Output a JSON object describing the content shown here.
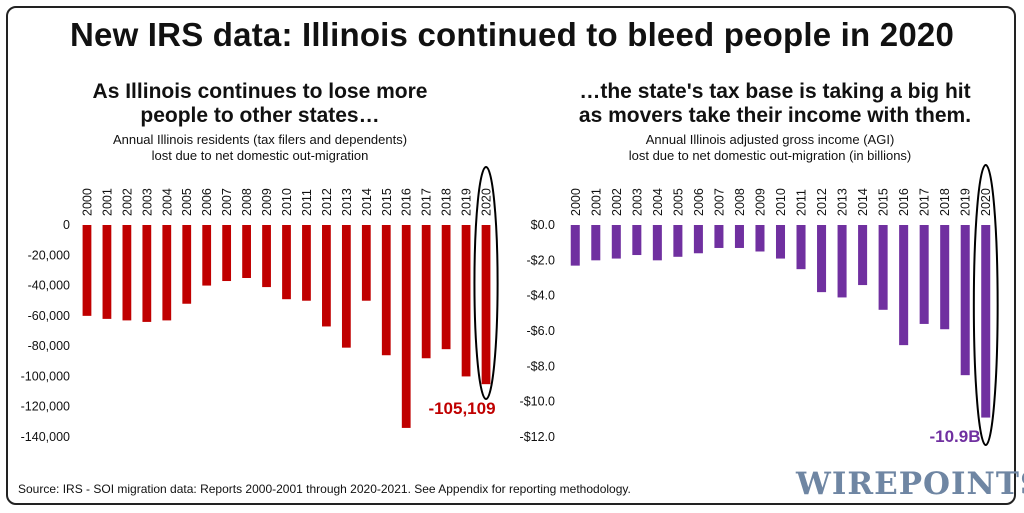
{
  "title": "New IRS data: Illinois continued to bleed people in 2020",
  "source": "Source: IRS - SOI migration data: Reports 2000-2001 through 2020-2021. See Appendix for reporting methodology.",
  "logo": "WIREPOINTS",
  "colors": {
    "left_bars": "#c00000",
    "right_bars": "#7030a0",
    "highlight_ellipse": "#000000"
  },
  "left_panel": {
    "subtitle_line1": "As Illinois continues to lose more",
    "subtitle_line2": "people to other states…",
    "caption_line1": "Annual Illinois residents (tax filers and dependents)",
    "caption_line2": "lost due to net domestic out-migration",
    "callout": "-105,109"
  },
  "right_panel": {
    "subtitle_line1": "…the state's tax base is taking a big hit",
    "subtitle_line2": "as movers take their income with them.",
    "caption_line1": "Annual Illinois adjusted gross income (AGI)",
    "caption_line2": "lost due to net domestic out-migration (in billions)",
    "callout": "-10.9B"
  },
  "chart_data": [
    {
      "type": "bar",
      "categories": [
        "2000",
        "2001",
        "2002",
        "2003",
        "2004",
        "2005",
        "2006",
        "2007",
        "2008",
        "2009",
        "2010",
        "2011",
        "2012",
        "2013",
        "2014",
        "2015",
        "2016",
        "2017",
        "2018",
        "2019",
        "2020"
      ],
      "values": [
        -60000,
        -62000,
        -63000,
        -64000,
        -63000,
        -52000,
        -40000,
        -37000,
        -35000,
        -41000,
        -49000,
        -50000,
        -67000,
        -81000,
        -50000,
        -86000,
        -134000,
        -88000,
        -82000,
        -100000,
        -105109
      ],
      "ylim": [
        -140000,
        0
      ],
      "yticks": [
        0,
        -20000,
        -40000,
        -60000,
        -80000,
        -100000,
        -120000,
        -140000
      ],
      "ytick_labels": [
        "0",
        "-20,000",
        "-40,000",
        "-60,000",
        "-80,000",
        "-100,000",
        "-120,000",
        "-140,000"
      ],
      "color": "#c00000",
      "highlight": "2020",
      "data_label": "-105,109",
      "grid": false
    },
    {
      "type": "bar",
      "categories": [
        "2000",
        "2001",
        "2002",
        "2003",
        "2004",
        "2005",
        "2006",
        "2007",
        "2008",
        "2009",
        "2010",
        "2011",
        "2012",
        "2013",
        "2014",
        "2015",
        "2016",
        "2017",
        "2018",
        "2019",
        "2020"
      ],
      "values": [
        -2.3,
        -2.0,
        -1.9,
        -1.7,
        -2.0,
        -1.8,
        -1.6,
        -1.3,
        -1.3,
        -1.5,
        -1.9,
        -2.5,
        -3.8,
        -4.1,
        -3.4,
        -4.8,
        -6.8,
        -5.6,
        -5.9,
        -8.5,
        -10.9
      ],
      "ylim": [
        -12,
        0
      ],
      "yticks": [
        0,
        -2,
        -4,
        -6,
        -8,
        -10,
        -12
      ],
      "ytick_labels": [
        "$0.0",
        "-$2.0",
        "-$4.0",
        "-$6.0",
        "-$8.0",
        "-$10.0",
        "-$12.0"
      ],
      "color": "#7030a0",
      "highlight": "2020",
      "data_label": "-10.9B",
      "grid": false
    }
  ]
}
